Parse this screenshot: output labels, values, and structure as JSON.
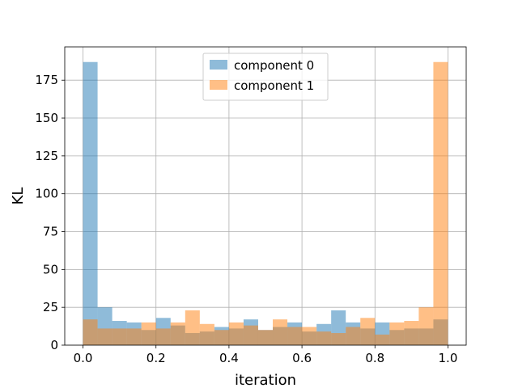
{
  "chart_data": {
    "type": "bar",
    "histogram": true,
    "title": "",
    "xlabel": "iteration",
    "ylabel": "KL",
    "xlim": [
      -0.05,
      1.05
    ],
    "ylim": [
      0,
      197
    ],
    "xticks": [
      0.0,
      0.2,
      0.4,
      0.6,
      0.8,
      1.0
    ],
    "xtick_labels": [
      "0.0",
      "0.2",
      "0.4",
      "0.6",
      "0.8",
      "1.0"
    ],
    "yticks": [
      0,
      25,
      50,
      75,
      100,
      125,
      150,
      175
    ],
    "ytick_labels": [
      "0",
      "25",
      "50",
      "75",
      "100",
      "125",
      "150",
      "175"
    ],
    "grid": true,
    "legend_position": "top-center",
    "bin_edges": [
      0.0,
      0.04,
      0.08,
      0.12,
      0.16,
      0.2,
      0.24,
      0.28,
      0.32,
      0.36,
      0.4,
      0.44,
      0.48,
      0.52,
      0.56,
      0.6,
      0.64,
      0.68,
      0.72,
      0.76,
      0.8,
      0.84,
      0.88,
      0.92,
      0.96,
      1.0
    ],
    "series": [
      {
        "name": "component 0",
        "color": "#1f77b4",
        "opacity": 0.5,
        "values": [
          187,
          25,
          16,
          15,
          10,
          18,
          13,
          8,
          9,
          12,
          11,
          17,
          10,
          12,
          15,
          9,
          14,
          23,
          15,
          11,
          15,
          10,
          11,
          11,
          17
        ]
      },
      {
        "name": "component 1",
        "color": "#ff7f0e",
        "opacity": 0.5,
        "values": [
          17,
          11,
          11,
          11,
          15,
          11,
          15,
          23,
          14,
          10,
          15,
          13,
          10,
          17,
          12,
          12,
          9,
          8,
          12,
          18,
          7,
          15,
          16,
          25,
          187
        ]
      }
    ]
  }
}
